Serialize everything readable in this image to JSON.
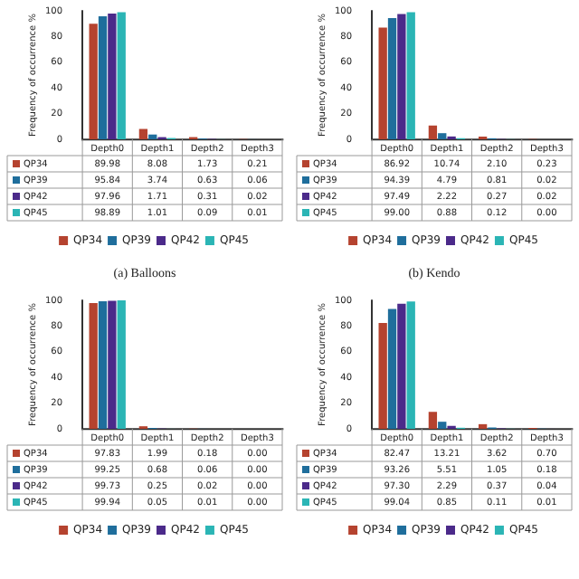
{
  "chart_data": [
    {
      "type": "bar",
      "title": "(a) Balloons",
      "ylabel": "Frequency of occurrence %",
      "categories": [
        "Depth0",
        "Depth1",
        "Depth2",
        "Depth3"
      ],
      "ylim": [
        0,
        100
      ],
      "yticks": [
        0,
        20,
        40,
        60,
        80,
        100
      ],
      "grid": false,
      "legend": "bottom",
      "series": [
        {
          "name": "QP34",
          "color": "#b5432f",
          "values": [
            89.98,
            8.08,
            1.73,
            0.21
          ],
          "value_labels": [
            "89.98",
            "8.08",
            "1.73",
            "0.21"
          ]
        },
        {
          "name": "QP39",
          "color": "#1f6e9c",
          "values": [
            95.84,
            3.74,
            0.63,
            0.06
          ],
          "value_labels": [
            "95.84",
            "3.74",
            "0.63",
            "0.06"
          ]
        },
        {
          "name": "QP42",
          "color": "#4b2a8a",
          "values": [
            97.96,
            1.71,
            0.31,
            0.02
          ],
          "value_labels": [
            "97.96",
            "1.71",
            "0.31",
            "0.02"
          ]
        },
        {
          "name": "QP45",
          "color": "#2bb5b5",
          "values": [
            98.89,
            1.01,
            0.09,
            0.01
          ],
          "value_labels": [
            "98.89",
            "1.01",
            "0.09",
            "0.01"
          ]
        }
      ]
    },
    {
      "type": "bar",
      "title": "(b) Kendo",
      "ylabel": "Frequency of occurrence %",
      "categories": [
        "Depth0",
        "Depth1",
        "Depth2",
        "Depth3"
      ],
      "ylim": [
        0,
        100
      ],
      "yticks": [
        0,
        20,
        40,
        60,
        80,
        100
      ],
      "grid": false,
      "legend": "bottom",
      "series": [
        {
          "name": "QP34",
          "color": "#b5432f",
          "values": [
            86.92,
            10.74,
            2.1,
            0.23
          ],
          "value_labels": [
            "86.92",
            "10.74",
            "2.10",
            "0.23"
          ]
        },
        {
          "name": "QP39",
          "color": "#1f6e9c",
          "values": [
            94.39,
            4.79,
            0.81,
            0.02
          ],
          "value_labels": [
            "94.39",
            "4.79",
            "0.81",
            "0.02"
          ]
        },
        {
          "name": "QP42",
          "color": "#4b2a8a",
          "values": [
            97.49,
            2.22,
            0.27,
            0.02
          ],
          "value_labels": [
            "97.49",
            "2.22",
            "0.27",
            "0.02"
          ]
        },
        {
          "name": "QP45",
          "color": "#2bb5b5",
          "values": [
            99.0,
            0.88,
            0.12,
            0.0
          ],
          "value_labels": [
            "99.00",
            "0.88",
            "0.12",
            "0.00"
          ]
        }
      ]
    },
    {
      "type": "bar",
      "ylabel": "Frequency of occurrence %",
      "categories": [
        "Depth0",
        "Depth1",
        "Depth2",
        "Depth3"
      ],
      "ylim": [
        0,
        100
      ],
      "yticks": [
        0,
        20,
        40,
        60,
        80,
        100
      ],
      "grid": false,
      "legend": "bottom",
      "series": [
        {
          "name": "QP34",
          "color": "#b5432f",
          "values": [
            97.83,
            1.99,
            0.18,
            0.0
          ],
          "value_labels": [
            "97.83",
            "1.99",
            "0.18",
            "0.00"
          ]
        },
        {
          "name": "QP39",
          "color": "#1f6e9c",
          "values": [
            99.25,
            0.68,
            0.06,
            0.0
          ],
          "value_labels": [
            "99.25",
            "0.68",
            "0.06",
            "0.00"
          ]
        },
        {
          "name": "QP42",
          "color": "#4b2a8a",
          "values": [
            99.73,
            0.25,
            0.02,
            0.0
          ],
          "value_labels": [
            "99.73",
            "0.25",
            "0.02",
            "0.00"
          ]
        },
        {
          "name": "QP45",
          "color": "#2bb5b5",
          "values": [
            99.94,
            0.05,
            0.01,
            0.0
          ],
          "value_labels": [
            "99.94",
            "0.05",
            "0.01",
            "0.00"
          ]
        }
      ]
    },
    {
      "type": "bar",
      "ylabel": "Frequency of occurrence %",
      "categories": [
        "Depth0",
        "Depth1",
        "Depth2",
        "Depth3"
      ],
      "ylim": [
        0,
        100
      ],
      "yticks": [
        0,
        20,
        40,
        60,
        80,
        100
      ],
      "grid": false,
      "legend": "bottom",
      "series": [
        {
          "name": "QP34",
          "color": "#b5432f",
          "values": [
            82.47,
            13.21,
            3.62,
            0.7
          ],
          "value_labels": [
            "82.47",
            "13.21",
            "3.62",
            "0.70"
          ]
        },
        {
          "name": "QP39",
          "color": "#1f6e9c",
          "values": [
            93.26,
            5.51,
            1.05,
            0.18
          ],
          "value_labels": [
            "93.26",
            "5.51",
            "1.05",
            "0.18"
          ]
        },
        {
          "name": "QP42",
          "color": "#4b2a8a",
          "values": [
            97.3,
            2.29,
            0.37,
            0.04
          ],
          "value_labels": [
            "97.30",
            "2.29",
            "0.37",
            "0.04"
          ]
        },
        {
          "name": "QP45",
          "color": "#2bb5b5",
          "values": [
            99.04,
            0.85,
            0.11,
            0.01
          ],
          "value_labels": [
            "99.04",
            "0.85",
            "0.11",
            "0.01"
          ]
        }
      ]
    }
  ]
}
